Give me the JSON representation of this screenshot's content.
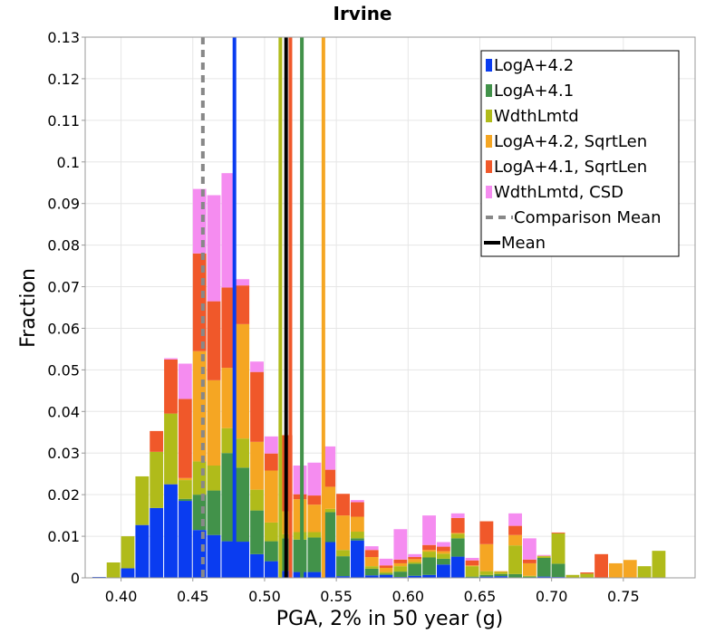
{
  "chart_data": {
    "type": "bar",
    "stacked": true,
    "title": "Irvine",
    "xlabel": "PGA, 2% in 50 year (g)",
    "ylabel": "Fraction",
    "xlim": [
      0.375,
      0.8
    ],
    "ylim": [
      0,
      0.13
    ],
    "bin_width": 0.01,
    "x_ticks": [
      "0.40",
      "0.45",
      "0.50",
      "0.55",
      "0.60",
      "0.65",
      "0.70",
      "0.75"
    ],
    "x_tick_values": [
      0.4,
      0.45,
      0.5,
      0.55,
      0.6,
      0.65,
      0.7,
      0.75
    ],
    "y_ticks": [
      "0",
      "0.01",
      "0.02",
      "0.03",
      "0.04",
      "0.05",
      "0.06",
      "0.07",
      "0.08",
      "0.09",
      "0.1",
      "0.11",
      "0.12",
      "0.13"
    ],
    "y_tick_values": [
      0,
      0.01,
      0.02,
      0.03,
      0.04,
      0.05,
      0.06,
      0.07,
      0.08,
      0.09,
      0.1,
      0.11,
      0.12,
      0.13
    ],
    "grid": true,
    "legend_position": "top-right",
    "series": [
      {
        "name": "LogA+4.2",
        "color": "#0a3cf0"
      },
      {
        "name": "LogA+4.1",
        "color": "#42924a"
      },
      {
        "name": "WdthLmtd",
        "color": "#b0bb1a"
      },
      {
        "name": "LogA+4.2, SqrtLen",
        "color": "#f5a623"
      },
      {
        "name": "LogA+4.1, SqrtLen",
        "color": "#f0582a"
      },
      {
        "name": "WdthLmtd, CSD",
        "color": "#f58cf0"
      }
    ],
    "bins": [
      {
        "x": 0.385,
        "values": [
          0.0002,
          0,
          0,
          0,
          0,
          0
        ]
      },
      {
        "x": 0.395,
        "values": [
          0,
          0,
          0.0037,
          0,
          0,
          0
        ]
      },
      {
        "x": 0.405,
        "values": [
          0.0023,
          0,
          0.0077,
          0,
          0,
          0
        ]
      },
      {
        "x": 0.415,
        "values": [
          0.0127,
          0,
          0.0117,
          0,
          0,
          0
        ]
      },
      {
        "x": 0.425,
        "values": [
          0.0168,
          0,
          0.0135,
          0,
          0.005,
          0
        ]
      },
      {
        "x": 0.435,
        "values": [
          0.0225,
          0,
          0.017,
          0,
          0.013,
          0.0003
        ]
      },
      {
        "x": 0.445,
        "values": [
          0.0185,
          0.0005,
          0.0045,
          0.0005,
          0.019,
          0.0085
        ]
      },
      {
        "x": 0.455,
        "values": [
          0.0115,
          0.0085,
          0.008,
          0.0265,
          0.0235,
          0.0155
        ]
      },
      {
        "x": 0.465,
        "values": [
          0.0103,
          0.0107,
          0.006,
          0.0205,
          0.019,
          0.0255
        ]
      },
      {
        "x": 0.475,
        "values": [
          0.0088,
          0.0212,
          0.006,
          0.0145,
          0.0193,
          0.0275
        ]
      },
      {
        "x": 0.485,
        "values": [
          0.0087,
          0.0178,
          0.007,
          0.0275,
          0.0093,
          0.0015
        ]
      },
      {
        "x": 0.495,
        "values": [
          0.0057,
          0.0105,
          0.005,
          0.0115,
          0.0168,
          0.0025
        ]
      },
      {
        "x": 0.505,
        "values": [
          0.004,
          0.0048,
          0.0045,
          0.0125,
          0.0041,
          0.0041
        ]
      },
      {
        "x": 0.515,
        "values": [
          0.0017,
          0.0078,
          0.001,
          0.0055,
          0.0183,
          0
        ]
      },
      {
        "x": 0.525,
        "values": [
          0.0014,
          0.0078,
          0.0018,
          0.0079,
          0.0012,
          0.0069
        ]
      },
      {
        "x": 0.535,
        "values": [
          0.0014,
          0.0083,
          0.0013,
          0.0066,
          0.0022,
          0.0079
        ]
      },
      {
        "x": 0.545,
        "values": [
          0.0086,
          0.0072,
          0.0008,
          0.0053,
          0.0041,
          0.0056
        ]
      },
      {
        "x": 0.555,
        "values": [
          0.0004,
          0.0048,
          0.0015,
          0.0083,
          0.0052,
          0
        ]
      },
      {
        "x": 0.565,
        "values": [
          0.009,
          0.0005,
          0.0016,
          0.0036,
          0.0035,
          0.0005
        ]
      },
      {
        "x": 0.575,
        "values": [
          0.0006,
          0.0016,
          0.0006,
          0.0022,
          0.0017,
          0.0009
        ]
      },
      {
        "x": 0.585,
        "values": [
          0.0007,
          0.0003,
          0.0004,
          0.001,
          0.0006,
          0.0016
        ]
      },
      {
        "x": 0.595,
        "values": [
          0.0002,
          0.0013,
          0.0013,
          0.0007,
          0.0009,
          0.0073
        ]
      },
      {
        "x": 0.605,
        "values": [
          0.0005,
          0.0029,
          0.0004,
          0.0007,
          0.0005,
          0.0007
        ]
      },
      {
        "x": 0.615,
        "values": [
          0.0007,
          0.0042,
          0.0014,
          0.0004,
          0.0012,
          0.0071
        ]
      },
      {
        "x": 0.625,
        "values": [
          0.0032,
          0.0014,
          0.0012,
          0.0006,
          0.0011,
          0.0011
        ]
      },
      {
        "x": 0.635,
        "values": [
          0.0051,
          0.0044,
          0.0011,
          0.0002,
          0.0036,
          0.0011
        ]
      },
      {
        "x": 0.645,
        "values": [
          0,
          0.0003,
          0.0025,
          0.0002,
          0.0012,
          0.0006
        ]
      },
      {
        "x": 0.655,
        "values": [
          0.0003,
          0.0004,
          0.0009,
          0.0065,
          0.0055,
          0
        ]
      },
      {
        "x": 0.665,
        "values": [
          0.0004,
          0.0005,
          0.0005,
          0.0002,
          0,
          0
        ]
      },
      {
        "x": 0.675,
        "values": [
          0,
          0.0009,
          0.0069,
          0.0025,
          0.0022,
          0.003
        ]
      },
      {
        "x": 0.685,
        "values": [
          0,
          0.0003,
          0.0002,
          0.003,
          0.0009,
          0.0051
        ]
      },
      {
        "x": 0.695,
        "values": [
          0.0003,
          0.0045,
          0.0004,
          0.0001,
          0,
          0.0002
        ]
      },
      {
        "x": 0.705,
        "values": [
          0.0002,
          0.0032,
          0.0073,
          0,
          0.0002,
          0
        ]
      },
      {
        "x": 0.715,
        "values": [
          0,
          0,
          0.0007,
          0,
          0,
          0
        ]
      },
      {
        "x": 0.725,
        "values": [
          0,
          0,
          0.001,
          0,
          0.0003,
          0
        ]
      },
      {
        "x": 0.735,
        "values": [
          0,
          0,
          0,
          0,
          0.0057,
          0
        ]
      },
      {
        "x": 0.745,
        "values": [
          0,
          0,
          0,
          0.0035,
          0,
          0
        ]
      },
      {
        "x": 0.755,
        "values": [
          0,
          0,
          0,
          0.0043,
          0,
          0
        ]
      },
      {
        "x": 0.765,
        "values": [
          0,
          0,
          0.0028,
          0,
          0,
          0
        ]
      },
      {
        "x": 0.775,
        "values": [
          0,
          0,
          0.0065,
          0,
          0,
          0
        ]
      }
    ],
    "vertical_lines": [
      {
        "name": "Comparison Mean",
        "x": 0.457,
        "color": "#888888",
        "dashed": true
      },
      {
        "name": "LogA+4.2",
        "x": 0.479,
        "color": "#0a3cf0",
        "dashed": false
      },
      {
        "name": "WdthLmtd",
        "x": 0.511,
        "color": "#b0bb1a",
        "dashed": false
      },
      {
        "name": "LogA+4.1, SqrtLen",
        "x": 0.518,
        "color": "#f0582a",
        "dashed": false
      },
      {
        "name": "Mean",
        "x": 0.515,
        "color": "#000000",
        "dashed": false
      },
      {
        "name": "LogA+4.1",
        "x": 0.526,
        "color": "#42924a",
        "dashed": false
      },
      {
        "name": "LogA+4.2, SqrtLen",
        "x": 0.541,
        "color": "#f5a623",
        "dashed": false
      }
    ],
    "legend": [
      {
        "label": "LogA+4.2",
        "color": "#0a3cf0",
        "kind": "box"
      },
      {
        "label": "LogA+4.1",
        "color": "#42924a",
        "kind": "box"
      },
      {
        "label": "WdthLmtd",
        "color": "#b0bb1a",
        "kind": "box"
      },
      {
        "label": "LogA+4.2, SqrtLen",
        "color": "#f5a623",
        "kind": "box"
      },
      {
        "label": "LogA+4.1, SqrtLen",
        "color": "#f0582a",
        "kind": "box"
      },
      {
        "label": "WdthLmtd, CSD",
        "color": "#f58cf0",
        "kind": "box"
      },
      {
        "label": "Comparison Mean",
        "color": "#888888",
        "kind": "dashed"
      },
      {
        "label": "Mean",
        "color": "#000000",
        "kind": "line"
      }
    ]
  }
}
